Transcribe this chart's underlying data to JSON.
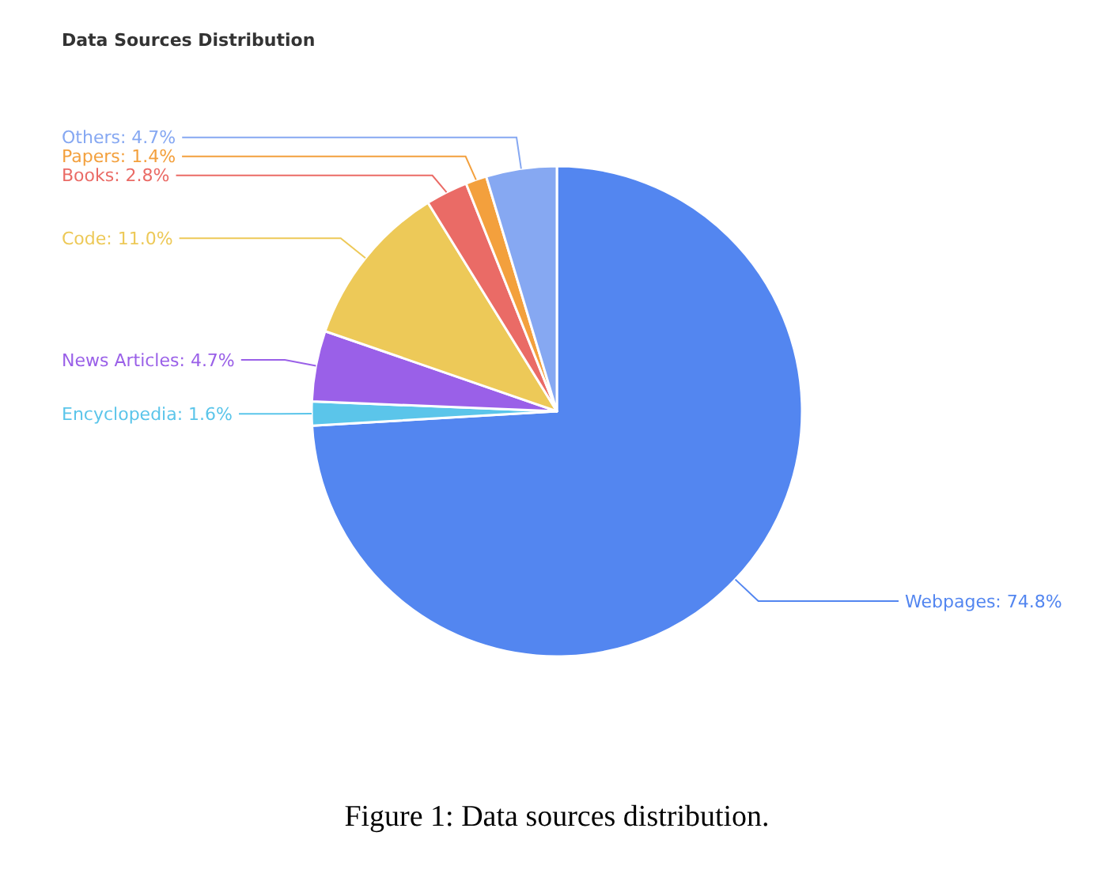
{
  "chart_data": {
    "type": "pie",
    "title": "Data Sources Distribution",
    "categories": [
      "Webpages",
      "Encyclopedia",
      "News Articles",
      "Code",
      "Books",
      "Papers",
      "Others"
    ],
    "values": [
      74.8,
      1.6,
      4.7,
      11.0,
      2.8,
      1.4,
      4.7
    ],
    "value_labels": [
      "74.8%",
      "1.6%",
      "4.7%",
      "11.0%",
      "2.8%",
      "1.4%",
      "4.7%"
    ],
    "colors": [
      "#5386f0",
      "#5bc5ea",
      "#9a60e8",
      "#edc958",
      "#ea6b66",
      "#f3a03d",
      "#86a8f2"
    ],
    "annotations": [
      "Figure 1: Data sources distribution."
    ]
  }
}
